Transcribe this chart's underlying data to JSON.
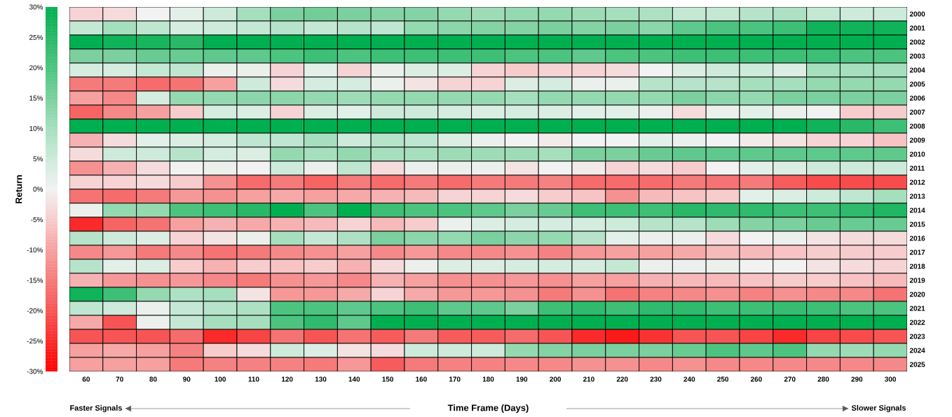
{
  "chart_data": {
    "type": "heatmap",
    "xlabel": "Time Frame (Days)",
    "clabel": "Return",
    "annotations": [
      "Faster Signals",
      "Slower Signals"
    ],
    "categories": [
      "60",
      "70",
      "80",
      "90",
      "100",
      "110",
      "120",
      "130",
      "140",
      "150",
      "160",
      "170",
      "180",
      "190",
      "200",
      "210",
      "220",
      "230",
      "240",
      "250",
      "260",
      "270",
      "280",
      "290",
      "300"
    ],
    "y_categories": [
      "2000",
      "2001",
      "2002",
      "2003",
      "2004",
      "2005",
      "2006",
      "2007",
      "2008",
      "2009",
      "2010",
      "2011",
      "2012",
      "2013",
      "2014",
      "2015",
      "2016",
      "2017",
      "2018",
      "2019",
      "2020",
      "2021",
      "2022",
      "2023",
      "2024",
      "2025"
    ],
    "cells": [
      [
        -4,
        -3,
        0,
        2,
        5,
        10,
        15,
        16,
        15,
        14,
        14,
        12,
        11,
        12,
        12,
        11,
        10,
        9,
        6,
        6,
        8,
        9,
        6,
        5,
        5
      ],
      [
        6,
        10,
        7,
        4,
        5,
        6,
        8,
        6,
        8,
        7,
        12,
        13,
        14,
        14,
        15,
        14,
        15,
        13,
        18,
        20,
        20,
        22,
        28,
        28,
        28
      ],
      [
        30,
        28,
        27,
        25,
        30,
        30,
        30,
        30,
        30,
        30,
        30,
        30,
        30,
        30,
        30,
        30,
        30,
        30,
        30,
        30,
        30,
        30,
        30,
        30,
        30
      ],
      [
        15,
        15,
        17,
        17,
        18,
        18,
        20,
        22,
        20,
        22,
        22,
        22,
        22,
        20,
        20,
        18,
        20,
        20,
        22,
        22,
        22,
        22,
        22,
        20,
        20
      ],
      [
        4,
        4,
        6,
        7,
        1,
        1,
        -4,
        2,
        -4,
        1,
        3,
        3,
        -4,
        -5,
        -4,
        -4,
        -3,
        0,
        3,
        5,
        5,
        3,
        10,
        10,
        10
      ],
      [
        -15,
        -15,
        -17,
        -16,
        -10,
        5,
        -3,
        4,
        4,
        1,
        -2,
        -4,
        -4,
        3,
        4,
        1,
        1,
        8,
        8,
        8,
        10,
        10,
        12,
        12,
        12
      ],
      [
        -10,
        -13,
        4,
        12,
        12,
        13,
        13,
        12,
        11,
        12,
        12,
        12,
        12,
        10,
        12,
        12,
        12,
        12,
        15,
        13,
        12,
        15,
        15,
        15,
        15
      ],
      [
        -18,
        -13,
        -10,
        -5,
        4,
        3,
        -4,
        3,
        2,
        5,
        5,
        4,
        3,
        4,
        3,
        2,
        2,
        1,
        -3,
        1,
        2,
        1,
        0,
        -5,
        -5
      ],
      [
        30,
        30,
        30,
        30,
        30,
        30,
        30,
        30,
        30,
        30,
        30,
        30,
        30,
        30,
        30,
        30,
        30,
        30,
        30,
        30,
        30,
        30,
        28,
        25,
        22
      ],
      [
        -8,
        -3,
        2,
        3,
        4,
        7,
        7,
        10,
        5,
        8,
        7,
        3,
        1,
        0,
        -1,
        0,
        0,
        2,
        1,
        0,
        -1,
        -2,
        -4,
        -4,
        -6
      ],
      [
        -3,
        5,
        5,
        8,
        4,
        3,
        12,
        10,
        12,
        10,
        10,
        11,
        11,
        11,
        10,
        15,
        15,
        17,
        18,
        18,
        18,
        18,
        18,
        18,
        18
      ],
      [
        -12,
        -8,
        -3,
        0,
        1,
        0,
        5,
        1,
        7,
        -3,
        1,
        1,
        1,
        -2,
        0,
        -1,
        -4,
        -3,
        -5,
        0,
        2,
        3,
        5,
        5,
        5
      ],
      [
        -4,
        -4,
        -3,
        -5,
        -12,
        -17,
        -15,
        -18,
        -15,
        -17,
        -15,
        -17,
        -15,
        -15,
        -14,
        -17,
        -17,
        -17,
        -15,
        -16,
        -15,
        -19,
        -21,
        -21,
        -21
      ],
      [
        -16,
        -17,
        -15,
        -11,
        -12,
        -10,
        -9,
        -10,
        -9,
        -8,
        -7,
        -4,
        -4,
        -3,
        -5,
        -6,
        -12,
        -7,
        -6,
        -5,
        2,
        3,
        5,
        7,
        10
      ],
      [
        1,
        12,
        12,
        20,
        22,
        25,
        30,
        20,
        30,
        22,
        20,
        20,
        18,
        15,
        17,
        22,
        22,
        22,
        25,
        24,
        24,
        22,
        22,
        24,
        26
      ],
      [
        -25,
        -18,
        -16,
        -10,
        -8,
        -9,
        -8,
        -7,
        -4,
        -7,
        -5,
        1,
        3,
        4,
        4,
        4,
        5,
        8,
        8,
        11,
        14,
        15,
        17,
        17,
        17
      ],
      [
        8,
        5,
        3,
        -4,
        -2,
        1,
        10,
        6,
        9,
        15,
        13,
        12,
        15,
        13,
        12,
        8,
        2,
        1,
        1,
        -3,
        0,
        1,
        -2,
        -3,
        -3
      ],
      [
        -13,
        -11,
        -15,
        -13,
        -16,
        -15,
        -13,
        -12,
        -10,
        -13,
        -11,
        -13,
        -13,
        -12,
        -14,
        -11,
        -10,
        -10,
        -9,
        -7,
        -7,
        -6,
        -5,
        -5,
        -5
      ],
      [
        8,
        2,
        3,
        -5,
        -8,
        -5,
        -6,
        -5,
        -8,
        -3,
        1,
        3,
        3,
        4,
        4,
        4,
        6,
        1,
        1,
        1,
        0,
        0,
        -2,
        -3,
        -4
      ],
      [
        -8,
        -11,
        -12,
        -11,
        -13,
        -15,
        -12,
        -11,
        -13,
        -8,
        -10,
        -12,
        -12,
        -11,
        -12,
        -10,
        -10,
        -8,
        -7,
        -7,
        -6,
        -5,
        -5,
        -6,
        -7
      ],
      [
        28,
        22,
        12,
        9,
        10,
        -2,
        -11,
        -11,
        -9,
        -4,
        -9,
        -11,
        -11,
        -12,
        -15,
        -12,
        -16,
        -14,
        -13,
        -12,
        -14,
        -12,
        -13,
        -13,
        -16
      ],
      [
        7,
        5,
        1,
        6,
        8,
        9,
        20,
        20,
        18,
        20,
        22,
        18,
        18,
        15,
        22,
        24,
        22,
        24,
        24,
        22,
        22,
        23,
        22,
        20,
        20
      ],
      [
        -9,
        -20,
        1,
        6,
        10,
        10,
        20,
        24,
        18,
        30,
        30,
        30,
        30,
        30,
        30,
        30,
        30,
        30,
        30,
        30,
        30,
        30,
        30,
        30,
        30
      ],
      [
        -20,
        -20,
        -20,
        -17,
        -25,
        -22,
        -16,
        -20,
        -16,
        -19,
        -15,
        -19,
        -19,
        -17,
        -20,
        -25,
        -27,
        -24,
        -20,
        -20,
        -22,
        -25,
        -22,
        -21,
        -20
      ],
      [
        -10,
        -9,
        -10,
        -14,
        -5,
        -3,
        5,
        3,
        -2,
        -3,
        5,
        5,
        5,
        12,
        14,
        15,
        15,
        15,
        17,
        20,
        18,
        20,
        12,
        11,
        12
      ],
      [
        -10,
        -10,
        -10,
        -15,
        -14,
        -14,
        -14,
        -15,
        -11,
        -19,
        -15,
        -14,
        -14,
        -13,
        -13,
        -12,
        -12,
        -13,
        -12,
        -13,
        -13,
        -13,
        -13,
        -13,
        -13
      ]
    ],
    "clim": [
      -30,
      30
    ],
    "cticks": [
      {
        "value": 30,
        "label": "30%"
      },
      {
        "value": 25,
        "label": "25%"
      },
      {
        "value": 20,
        "label": "20%"
      },
      {
        "value": 15,
        "label": "15%"
      },
      {
        "value": 10,
        "label": "10%"
      },
      {
        "value": 5,
        "label": "5%"
      },
      {
        "value": 0,
        "label": "0%"
      },
      {
        "value": -5,
        "label": "-5%"
      },
      {
        "value": -10,
        "label": "-10%"
      },
      {
        "value": -15,
        "label": "-15%"
      },
      {
        "value": -20,
        "label": "-20%"
      },
      {
        "value": -25,
        "label": "-25%"
      },
      {
        "value": -30,
        "label": "-30%"
      }
    ]
  }
}
